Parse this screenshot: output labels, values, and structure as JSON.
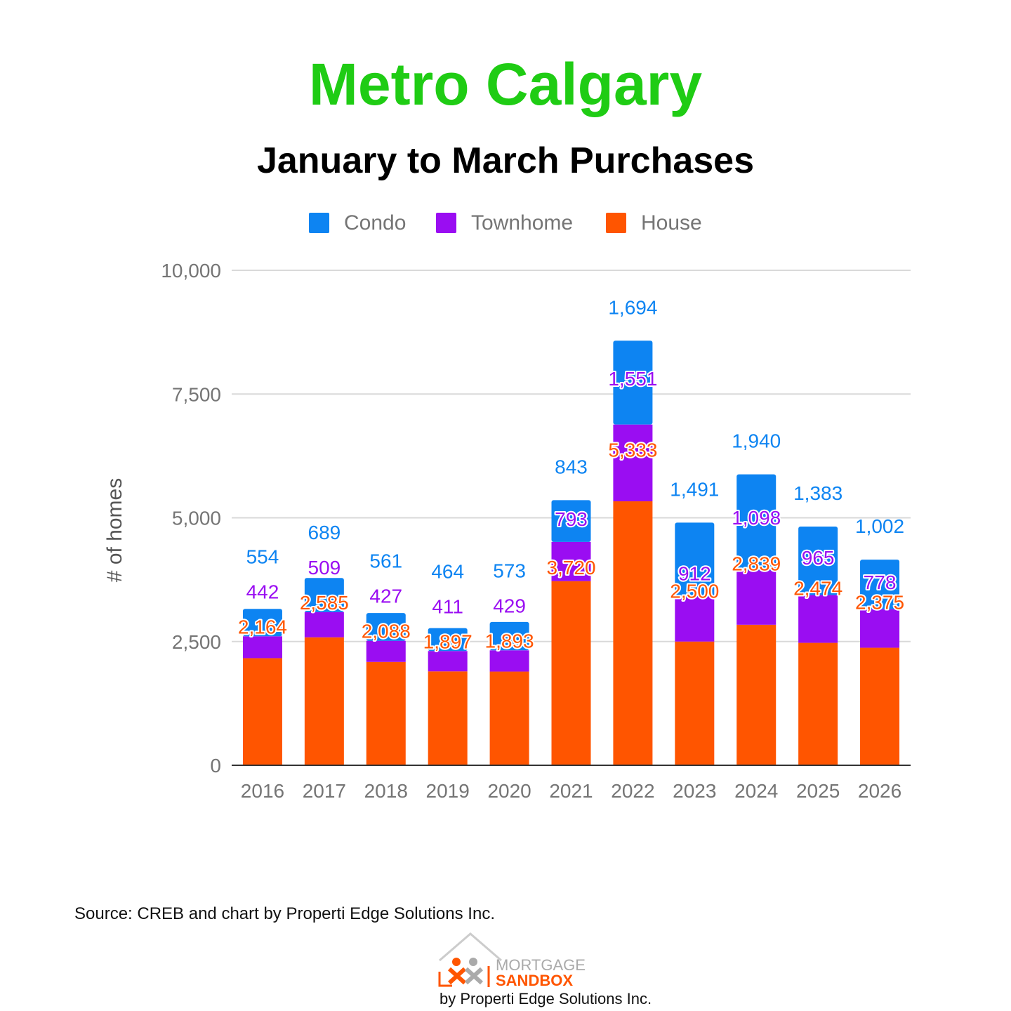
{
  "header": {
    "title": "Metro Calgary",
    "subtitle": "January to March Purchases"
  },
  "colors": {
    "title": "#1fcc14",
    "condo": "#0d84f2",
    "townhome": "#9a0df2",
    "house": "#ff5500",
    "grid": "#d9d9d9",
    "axis": "#333333",
    "tick": "#757575"
  },
  "chart_data": {
    "type": "bar",
    "stacked": true,
    "categories": [
      "2016",
      "2017",
      "2018",
      "2019",
      "2020",
      "2021",
      "2022",
      "2023",
      "2024",
      "2025",
      "2026"
    ],
    "series": [
      {
        "name": "House",
        "values": [
          2164,
          2585,
          2088,
          1897,
          1893,
          3720,
          5333,
          2500,
          2839,
          2474,
          2375
        ]
      },
      {
        "name": "Townhome",
        "values": [
          442,
          509,
          427,
          411,
          429,
          793,
          1551,
          912,
          1098,
          965,
          778
        ]
      },
      {
        "name": "Condo",
        "values": [
          554,
          689,
          561,
          464,
          573,
          843,
          1694,
          1491,
          1940,
          1383,
          1002
        ]
      }
    ],
    "legend_order": [
      "Condo",
      "Townhome",
      "House"
    ],
    "ylabel": "# of homes",
    "xlabel": "",
    "ylim": [
      0,
      10000
    ],
    "yticks": [
      0,
      2500,
      5000,
      7500,
      10000
    ],
    "ytick_labels": [
      "0",
      "2,500",
      "5,000",
      "7,500",
      "10,000"
    ],
    "legend_position": "top",
    "grid": true
  },
  "footer": {
    "source": "Source: CREB and chart by Properti Edge Solutions Inc.",
    "logo_line1": "MORTGAGE",
    "logo_line2": "SANDBOX",
    "byline": "by Properti Edge Solutions Inc."
  }
}
